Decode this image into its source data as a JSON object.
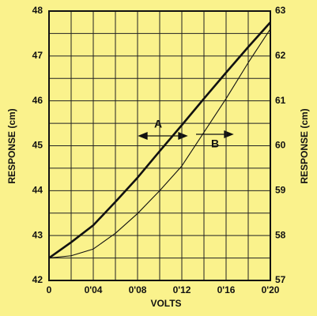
{
  "chart_data": {
    "type": "line",
    "xlabel": "VOLTS",
    "ylabel": "RESPONSE (cm)",
    "y2label": "RESPONSE (cm)",
    "x": [
      0,
      0.02,
      0.04,
      0.06,
      0.08,
      0.1,
      0.12,
      0.14,
      0.16,
      0.18,
      0.2
    ],
    "series": [
      {
        "name": "A",
        "color": "#111111",
        "line_width": 2.6,
        "axis": "y",
        "values": [
          42.5,
          42.85,
          43.23,
          43.75,
          44.29,
          44.88,
          45.46,
          46.05,
          46.63,
          47.2,
          47.75
        ]
      },
      {
        "name": "B",
        "color": "#111111",
        "line_width": 1.1,
        "axis": "y2",
        "values": [
          57.5,
          57.55,
          57.7,
          58.05,
          58.49,
          59.0,
          59.55,
          60.3,
          61.05,
          61.85,
          62.6
        ]
      }
    ],
    "xlim": [
      0,
      0.2
    ],
    "xticks": [
      0,
      {
        "value": 0.04,
        "label": "0'04"
      },
      {
        "value": 0.08,
        "label": "0'08"
      },
      {
        "value": 0.12,
        "label": "0'12"
      },
      {
        "value": 0.16,
        "label": "0'16"
      },
      {
        "value": 0.2,
        "label": "0'20"
      }
    ],
    "ylim": [
      42,
      48
    ],
    "yticks": [
      42,
      43,
      44,
      45,
      46,
      47,
      48
    ],
    "y2lim": [
      57,
      63
    ],
    "y2ticks": [
      57,
      58,
      59,
      60,
      61,
      62,
      63
    ],
    "xgrid": [
      0,
      0.02,
      0.04,
      0.06,
      0.08,
      0.1,
      0.12,
      0.14,
      0.16,
      0.18,
      0.2
    ],
    "ygrid": [
      42,
      42.5,
      43,
      43.5,
      44,
      44.5,
      45,
      45.5,
      46,
      46.5,
      47,
      47.5,
      48
    ],
    "grid": true,
    "background": "#faf28c"
  }
}
